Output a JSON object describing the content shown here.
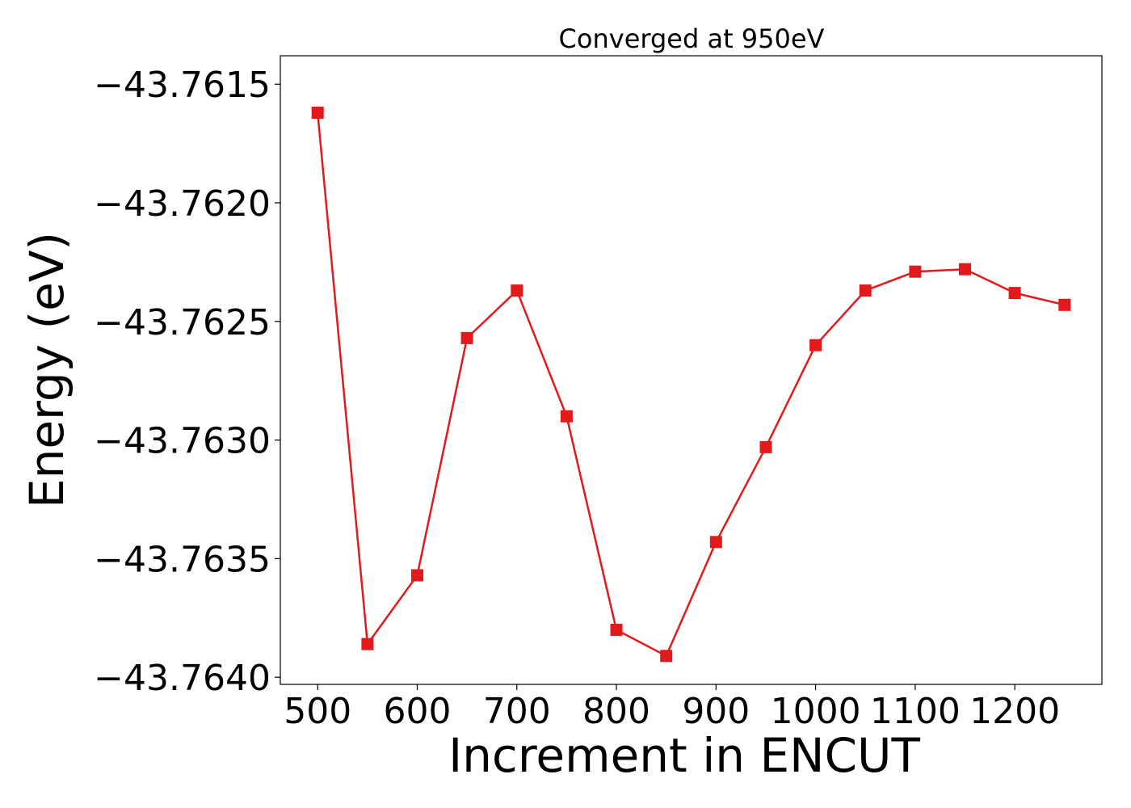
{
  "chart_data": {
    "type": "line",
    "title": "Converged at 950eV",
    "xlabel": "Increment in ENCUT",
    "ylabel": "Energy (eV)",
    "xlim": [
      462.5,
      1287.5
    ],
    "ylim": [
      -43.76403,
      -43.76138
    ],
    "xticks": [
      500,
      600,
      700,
      800,
      900,
      1000,
      1100,
      1200
    ],
    "xtick_labels": [
      "500",
      "600",
      "700",
      "800",
      "900",
      "1000",
      "1100",
      "1200"
    ],
    "yticks": [
      -43.7615,
      -43.762,
      -43.7625,
      -43.763,
      -43.7635,
      -43.764
    ],
    "ytick_labels": [
      "−43.7615",
      "−43.7620",
      "−43.7625",
      "−43.7630",
      "−43.7635",
      "−43.7640"
    ],
    "grid": false,
    "series": [
      {
        "color": "#e31a1c",
        "marker": "square",
        "x": [
          500,
          550,
          600,
          650,
          700,
          750,
          800,
          850,
          900,
          950,
          1000,
          1050,
          1100,
          1150,
          1200,
          1250
        ],
        "y": [
          -43.76162,
          -43.76386,
          -43.76357,
          -43.76257,
          -43.76237,
          -43.7629,
          -43.7638,
          -43.76391,
          -43.76343,
          -43.76303,
          -43.7626,
          -43.76237,
          -43.76229,
          -43.76228,
          -43.76238,
          -43.76243
        ]
      }
    ]
  }
}
